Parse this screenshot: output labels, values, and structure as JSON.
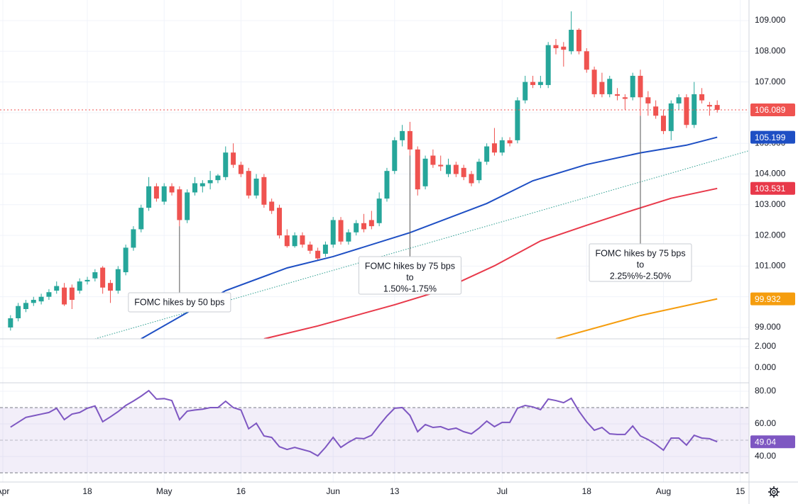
{
  "chart_data": {
    "type": "candlestick",
    "xlim": [
      -1.37,
      96.14
    ],
    "ylim": [
      98.63,
      109.67
    ],
    "xticks": [
      {
        "value": -1,
        "label": "Apr"
      },
      {
        "value": 10,
        "label": "18"
      },
      {
        "value": 20,
        "label": "May"
      },
      {
        "value": 30,
        "label": "16"
      },
      {
        "value": 42,
        "label": "Jun"
      },
      {
        "value": 50,
        "label": "13"
      },
      {
        "value": 64,
        "label": "Jul"
      },
      {
        "value": 75,
        "label": "18"
      },
      {
        "value": 85,
        "label": "Aug"
      },
      {
        "value": 95,
        "label": "15"
      }
    ],
    "yticks": [
      {
        "value": 99,
        "label": "99.000"
      },
      {
        "value": 100,
        "label": "100.000"
      },
      {
        "value": 101,
        "label": "101.000"
      },
      {
        "value": 102,
        "label": "102.000"
      },
      {
        "value": 103,
        "label": "103.000"
      },
      {
        "value": 104,
        "label": "104.000"
      },
      {
        "value": 105,
        "label": "105.000"
      },
      {
        "value": 106,
        "label": "106.000"
      },
      {
        "value": 107,
        "label": "107.000"
      },
      {
        "value": 108,
        "label": "108.000"
      },
      {
        "value": 109,
        "label": "109.000"
      }
    ],
    "grid": true,
    "up_color": "#26a69a",
    "down_color": "#ef5350",
    "open": [
      99.0,
      99.3,
      99.6,
      99.8,
      99.85,
      100.0,
      100.2,
      100.3,
      100.3,
      100.2,
      100.5,
      100.6,
      100.95,
      100.45,
      100.2,
      100.8,
      101.6,
      102.2,
      102.9,
      103.6,
      103.1,
      103.6,
      103.5,
      102.5,
      103.4,
      103.6,
      103.7,
      103.8,
      103.9,
      104.7,
      104.3,
      104.1,
      103.3,
      103.9,
      103.1,
      102.9,
      102.0,
      101.65,
      102.0,
      101.7,
      101.5,
      101.4,
      101.7,
      102.5,
      101.8,
      102.1,
      102.4,
      102.5,
      102.4,
      103.2,
      104.1,
      105.1,
      105.4,
      104.8,
      103.6,
      104.6,
      104.3,
      104.0,
      104.3,
      104.2,
      104.0,
      103.8,
      104.4,
      105.0,
      104.7,
      105.1,
      105.1,
      106.4,
      107.0,
      106.9,
      106.9,
      108.2,
      108.15,
      108.0,
      108.7,
      108.0,
      107.4,
      107.0,
      106.6,
      106.6,
      106.5,
      106.5,
      107.2,
      106.5,
      106.2,
      105.9,
      105.4,
      106.3,
      106.5,
      105.6,
      106.6,
      106.25,
      106.25
    ],
    "high": [
      99.4,
      99.8,
      99.9,
      100.0,
      100.1,
      100.25,
      100.5,
      100.45,
      100.4,
      100.6,
      100.65,
      100.9,
      101.0,
      100.55,
      101.0,
      101.7,
      102.3,
      103.0,
      103.9,
      103.7,
      103.7,
      103.7,
      103.6,
      103.5,
      103.9,
      103.8,
      104.1,
      104.0,
      104.9,
      105.0,
      104.4,
      104.2,
      104.0,
      104.0,
      103.2,
      103.0,
      102.2,
      102.1,
      102.1,
      101.8,
      101.6,
      101.8,
      102.6,
      102.6,
      102.2,
      102.5,
      102.7,
      102.8,
      103.4,
      104.2,
      105.2,
      105.6,
      105.7,
      104.9,
      104.6,
      104.8,
      104.6,
      104.5,
      104.4,
      104.3,
      104.1,
      104.5,
      105.0,
      105.5,
      105.2,
      105.2,
      106.5,
      107.2,
      107.2,
      107.2,
      108.3,
      108.4,
      108.3,
      109.3,
      108.75,
      108.1,
      107.5,
      107.3,
      107.2,
      106.8,
      106.6,
      107.3,
      107.4,
      106.7,
      106.4,
      106.1,
      106.4,
      106.6,
      106.6,
      107.0,
      106.8,
      106.35,
      106.4
    ],
    "low": [
      98.9,
      99.2,
      99.5,
      99.7,
      99.75,
      99.9,
      100.1,
      99.7,
      99.6,
      100.1,
      100.4,
      100.5,
      100.1,
      99.8,
      100.1,
      100.7,
      101.5,
      102.1,
      102.8,
      103.1,
      103.0,
      103.3,
      102.3,
      102.4,
      103.3,
      103.4,
      103.5,
      103.7,
      103.8,
      104.2,
      103.9,
      103.2,
      103.2,
      102.9,
      102.7,
      101.9,
      101.6,
      101.6,
      101.6,
      101.4,
      101.2,
      101.3,
      101.6,
      101.7,
      101.7,
      102.0,
      102.1,
      102.2,
      102.3,
      103.1,
      104.0,
      104.9,
      104.6,
      103.3,
      103.5,
      104.2,
      104.1,
      103.9,
      103.9,
      103.8,
      103.6,
      103.7,
      104.3,
      104.6,
      104.6,
      104.9,
      105.0,
      106.3,
      106.8,
      106.8,
      106.8,
      107.9,
      107.5,
      107.9,
      107.9,
      107.3,
      106.5,
      106.5,
      106.5,
      106.4,
      106.1,
      106.4,
      105.9,
      105.9,
      105.8,
      105.3,
      105.1,
      106.1,
      105.5,
      105.5,
      106.3,
      105.9,
      106.0
    ],
    "close": [
      99.3,
      99.7,
      99.8,
      99.9,
      100.0,
      100.15,
      100.35,
      99.75,
      99.9,
      100.5,
      100.55,
      100.8,
      100.3,
      100.2,
      100.9,
      101.6,
      102.2,
      102.9,
      103.6,
      103.2,
      103.6,
      103.4,
      102.5,
      103.4,
      103.7,
      103.7,
      103.8,
      103.95,
      104.7,
      104.3,
      104.0,
      103.3,
      103.85,
      103.0,
      102.8,
      102.0,
      101.65,
      102.0,
      101.7,
      101.5,
      101.25,
      101.7,
      102.5,
      101.8,
      102.1,
      102.4,
      102.2,
      102.3,
      103.2,
      104.1,
      105.1,
      105.4,
      104.8,
      103.5,
      104.5,
      104.3,
      104.25,
      104.3,
      104.0,
      103.9,
      103.7,
      104.4,
      104.9,
      104.7,
      105.1,
      105.0,
      106.4,
      107.0,
      106.9,
      107.0,
      108.2,
      108.1,
      108.05,
      108.7,
      108.0,
      107.4,
      106.6,
      106.6,
      107.1,
      106.55,
      106.45,
      107.2,
      106.5,
      106.3,
      105.9,
      105.4,
      106.3,
      106.5,
      105.6,
      106.6,
      106.4,
      106.2,
      106.089
    ],
    "last_price_label": "106.089",
    "series": [
      {
        "color": "#1e4fc4",
        "x": [
          17,
          28,
          36,
          42,
          52,
          62,
          68,
          75,
          82,
          88,
          92
        ],
        "values": [
          98.63,
          100.2,
          100.94,
          101.31,
          102.09,
          103.04,
          103.78,
          104.31,
          104.69,
          104.94,
          105.199
        ],
        "last_label": "105.199"
      },
      {
        "color": "#e8394a",
        "x": [
          33,
          40,
          50,
          56,
          63,
          69,
          75,
          80,
          86,
          92
        ],
        "values": [
          98.63,
          99.05,
          99.74,
          100.2,
          101.01,
          101.82,
          102.33,
          102.74,
          103.21,
          103.531
        ],
        "last_label": "103.531"
      },
      {
        "color": "#f59d0e",
        "x": [
          71,
          82,
          92
        ],
        "values": [
          98.63,
          99.39,
          99.932
        ],
        "last_label": "99.932"
      },
      {
        "color": "#2a9d8f",
        "style": "dotted",
        "x": [
          11,
          96
        ],
        "values": [
          98.63,
          104.75
        ]
      }
    ],
    "annotations": [
      {
        "index": 22,
        "lines": [
          "FOMC hikes by 50 bps"
        ]
      },
      {
        "index": 52,
        "lines": [
          "FOMC hikes by 75 bps",
          "to",
          "1.50%-1.75%"
        ]
      },
      {
        "index": 82,
        "lines": [
          "FOMC hikes by 75 bps",
          "to",
          "2.25%%-2.50%"
        ]
      }
    ],
    "indicator": {
      "ylim": [
        -1.4,
        2.73
      ],
      "yticks": [
        {
          "value": 2,
          "label": "2.000"
        },
        {
          "value": 0,
          "label": "0.000"
        }
      ]
    },
    "rsi": {
      "color": "#7e57c2",
      "ylim": [
        24.35,
        85.2
      ],
      "band": [
        30,
        70
      ],
      "mid": 50,
      "yticks": [
        {
          "value": 80,
          "label": "80.00"
        },
        {
          "value": 60,
          "label": "60.00"
        },
        {
          "value": 40,
          "label": "40.00"
        }
      ],
      "values": [
        58,
        61,
        64,
        65,
        66,
        67,
        69.6,
        62.6,
        66,
        67,
        69.6,
        71,
        61.3,
        64.3,
        67.5,
        71.3,
        74,
        77,
        80.4,
        75.2,
        75.5,
        74.3,
        62.6,
        67.8,
        68.5,
        69,
        70,
        70,
        73.9,
        70,
        68.5,
        57,
        60.4,
        52.6,
        51.7,
        46,
        44.3,
        45.6,
        44.3,
        43,
        40.4,
        45.6,
        51.7,
        45.6,
        48.7,
        51.3,
        50.9,
        53,
        59.1,
        64.8,
        69.6,
        70,
        65.2,
        55.2,
        59.6,
        57.8,
        58.3,
        56.5,
        57.4,
        55.2,
        53.9,
        57.4,
        61.7,
        58.3,
        60.9,
        60.9,
        69.6,
        71.3,
        70.4,
        68.7,
        75.2,
        74.3,
        73,
        75.7,
        67.8,
        61.3,
        56.1,
        57.8,
        53.9,
        53.5,
        53.5,
        58.7,
        52.6,
        50.4,
        47.4,
        43.9,
        51.3,
        51.3,
        47,
        53,
        51.3,
        50.9,
        49.04
      ],
      "last_label": "49.04"
    }
  }
}
